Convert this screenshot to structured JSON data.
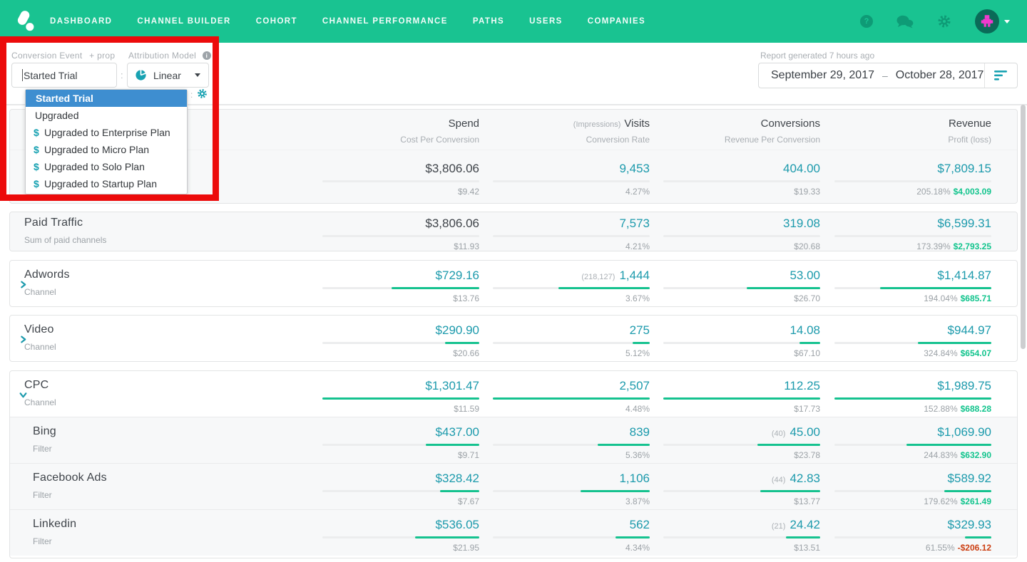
{
  "nav": {
    "items": [
      "DASHBOARD",
      "CHANNEL BUILDER",
      "COHORT",
      "CHANNEL PERFORMANCE",
      "PATHS",
      "USERS",
      "COMPANIES"
    ],
    "help_glyph": "?"
  },
  "toolbar": {
    "conversion_event_label": "Conversion Event",
    "prop_label": "+ prop",
    "conversion_event_value": "Started Trial",
    "separator": ":",
    "attribution_model_label": "Attribution Model",
    "model_value": "Linear",
    "report_generated": "Report generated 7 hours ago",
    "date_start": "September 29, 2017",
    "date_dash": "–",
    "date_end": "October 28, 2017"
  },
  "dropdown": {
    "items": [
      {
        "label": "Started Trial",
        "selected": true,
        "money": false
      },
      {
        "label": "Upgraded",
        "selected": false,
        "money": false
      },
      {
        "label": "Upgraded to Enterprise Plan",
        "selected": false,
        "money": true
      },
      {
        "label": "Upgraded to Micro Plan",
        "selected": false,
        "money": true
      },
      {
        "label": "Upgraded to Solo Plan",
        "selected": false,
        "money": true
      },
      {
        "label": "Upgraded to Startup Plan",
        "selected": false,
        "money": true
      }
    ],
    "money_glyph": "$"
  },
  "table": {
    "headers": [
      {
        "top": "Spend",
        "prefix": "",
        "sub": "Cost Per Conversion"
      },
      {
        "top": "Visits",
        "prefix": "(Impressions)",
        "sub": "Conversion Rate"
      },
      {
        "top": "Conversions",
        "prefix": "",
        "sub": "Revenue Per Conversion"
      },
      {
        "top": "Revenue",
        "prefix": "",
        "sub": "Profit (loss)"
      }
    ],
    "cards": [
      [
        0
      ],
      [
        1
      ],
      [
        2
      ],
      [
        3
      ],
      [
        4,
        5,
        6,
        7
      ]
    ],
    "rows": [
      {
        "title": "",
        "subtitle": "",
        "chevron": null,
        "bg": "gray",
        "indent": false,
        "cells": [
          {
            "value": "$3,806.06",
            "sub": "$9.42",
            "dark": true,
            "bar": 0
          },
          {
            "value": "9,453",
            "sub": "4.27%",
            "bar": 0
          },
          {
            "value": "404.00",
            "sub": "$19.33",
            "bar": 0
          },
          {
            "value": "$7,809.15",
            "pct": "205.18%",
            "profit": "$4,003.09",
            "neg": false,
            "bar": 0
          }
        ]
      },
      {
        "title": "Paid Traffic",
        "subtitle": "Sum of paid channels",
        "chevron": null,
        "bg": "gray",
        "indent": false,
        "cells": [
          {
            "value": "$3,806.06",
            "sub": "$11.93",
            "dark": true,
            "bar": 0
          },
          {
            "value": "7,573",
            "sub": "4.21%",
            "bar": 0
          },
          {
            "value": "319.08",
            "sub": "$20.68",
            "bar": 0
          },
          {
            "value": "$6,599.31",
            "pct": "173.39%",
            "profit": "$2,793.25",
            "neg": false,
            "bar": 0
          }
        ]
      },
      {
        "title": "Adwords",
        "subtitle": "Channel",
        "chevron": "right",
        "bg": "white",
        "indent": false,
        "cells": [
          {
            "value": "$729.16",
            "sub": "$13.76",
            "bar": 0.56
          },
          {
            "prefix": "(218,127)",
            "value": "1,444",
            "sub": "3.67%",
            "bar": 0.58
          },
          {
            "value": "53.00",
            "sub": "$26.70",
            "bar": 0.47
          },
          {
            "value": "$1,414.87",
            "pct": "194.04%",
            "profit": "$685.71",
            "neg": false,
            "bar": 0.71
          }
        ]
      },
      {
        "title": "Video",
        "subtitle": "Channel",
        "chevron": "right",
        "bg": "white",
        "indent": false,
        "cells": [
          {
            "value": "$290.90",
            "sub": "$20.66",
            "bar": 0.22
          },
          {
            "value": "275",
            "sub": "5.12%",
            "bar": 0.11
          },
          {
            "value": "14.08",
            "sub": "$67.10",
            "bar": 0.13
          },
          {
            "value": "$944.97",
            "pct": "324.84%",
            "profit": "$654.07",
            "neg": false,
            "bar": 0.47
          }
        ]
      },
      {
        "title": "CPC",
        "subtitle": "Channel",
        "chevron": "down",
        "bg": "white",
        "indent": false,
        "cells": [
          {
            "value": "$1,301.47",
            "sub": "$11.59",
            "bar": 1
          },
          {
            "value": "2,507",
            "sub": "4.48%",
            "bar": 1
          },
          {
            "value": "112.25",
            "sub": "$17.73",
            "bar": 1
          },
          {
            "value": "$1,989.75",
            "pct": "152.88%",
            "profit": "$688.28",
            "neg": false,
            "bar": 1
          }
        ]
      },
      {
        "title": "Bing",
        "subtitle": "Filter",
        "chevron": null,
        "bg": "gray",
        "indent": true,
        "cells": [
          {
            "value": "$437.00",
            "sub": "$9.71",
            "bar": 0.34
          },
          {
            "value": "839",
            "sub": "5.36%",
            "bar": 0.33
          },
          {
            "prefix": "(40)",
            "value": "45.00",
            "sub": "$23.78",
            "bar": 0.4
          },
          {
            "value": "$1,069.90",
            "pct": "244.83%",
            "profit": "$632.90",
            "neg": false,
            "bar": 0.54
          }
        ]
      },
      {
        "title": "Facebook Ads",
        "subtitle": "Filter",
        "chevron": null,
        "bg": "gray",
        "indent": true,
        "cells": [
          {
            "value": "$328.42",
            "sub": "$7.67",
            "bar": 0.25
          },
          {
            "value": "1,106",
            "sub": "3.87%",
            "bar": 0.44
          },
          {
            "prefix": "(44)",
            "value": "42.83",
            "sub": "$13.77",
            "bar": 0.38
          },
          {
            "value": "$589.92",
            "pct": "179.62%",
            "profit": "$261.49",
            "neg": false,
            "bar": 0.3
          }
        ]
      },
      {
        "title": "Linkedin",
        "subtitle": "Filter",
        "chevron": null,
        "bg": "gray",
        "indent": true,
        "cells": [
          {
            "value": "$536.05",
            "sub": "$21.95",
            "bar": 0.41
          },
          {
            "value": "562",
            "sub": "4.34%",
            "bar": 0.22
          },
          {
            "prefix": "(21)",
            "value": "24.42",
            "sub": "$13.51",
            "bar": 0.22
          },
          {
            "value": "$329.93",
            "pct": "61.55%",
            "profit": "-$206.12",
            "neg": true,
            "bar": 0.17
          }
        ]
      }
    ]
  },
  "colors": {
    "nav_green": "#19C391",
    "bar_green": "#15C28F",
    "teal_value": "#1C9AAC",
    "profit_green": "#12C48D",
    "loss_red": "#CC3F12",
    "selected_blue": "#3E8ED0",
    "annotation_red": "#EC0B0B"
  }
}
